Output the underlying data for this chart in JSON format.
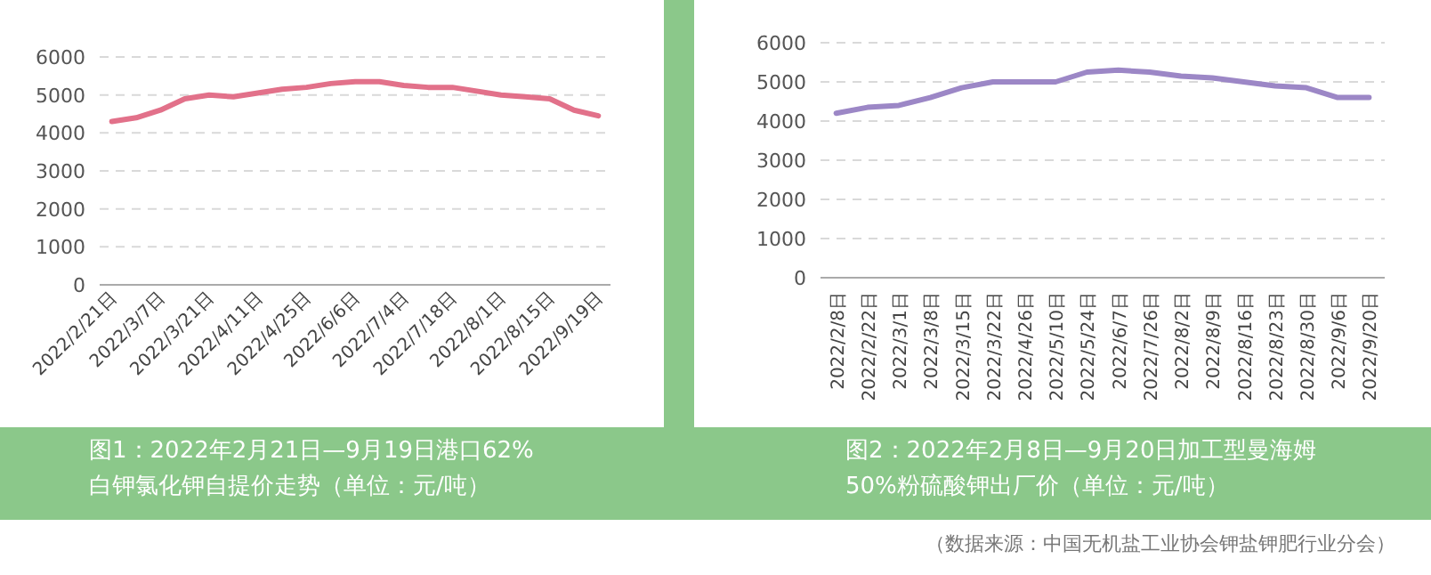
{
  "chart_data": [
    {
      "type": "line",
      "title": "图1：2022年2月21日—9月19日港口62%白钾氯化钾自提价走势（单位：元/吨）",
      "categories": [
        "2022/2/21日",
        null,
        "2022/3/7日",
        null,
        "2022/3/21日",
        null,
        "2022/4/11日",
        null,
        "2022/4/25日",
        null,
        "2022/6/6日",
        null,
        "2022/7/4日",
        null,
        "2022/7/18日",
        null,
        "2022/8/1日",
        null,
        "2022/8/15日",
        null,
        "2022/9/19日"
      ],
      "series": [
        {
          "color": "#e2718a",
          "values": [
            4300,
            4400,
            4600,
            4900,
            5000,
            4950,
            5050,
            5150,
            5200,
            5300,
            5350,
            5350,
            5250,
            5200,
            5200,
            5100,
            5000,
            4950,
            4900,
            4600,
            4450
          ]
        }
      ],
      "ylim": [
        0,
        6000
      ],
      "yticks": [
        0,
        1000,
        2000,
        3000,
        4000,
        5000,
        6000
      ],
      "grid": "y"
    },
    {
      "type": "line",
      "title": "图2：2022年2月8日—9月20日加工型曼海姆50%粉硫酸钾出厂价（单位：元/吨）",
      "categories": [
        "2022/2/8日",
        "2022/2/22日",
        "2022/3/1日",
        "2022/3/8日",
        "2022/3/15日",
        "2022/3/22日",
        "2022/4/26日",
        "2022/5/10日",
        "2022/5/24日",
        "2022/6/7日",
        "2022/7/26日",
        "2022/8/2日",
        "2022/8/9日",
        "2022/8/16日",
        "2022/8/23日",
        "2022/8/30日",
        "2022/9/6日",
        "2022/9/20日"
      ],
      "series": [
        {
          "color": "#9c87c6",
          "values": [
            4200,
            4350,
            4400,
            4600,
            4850,
            5000,
            5000,
            5000,
            5250,
            5300,
            5250,
            5150,
            5100,
            5000,
            4900,
            4850,
            4600,
            4600
          ]
        }
      ],
      "ylim": [
        0,
        6000
      ],
      "yticks": [
        0,
        1000,
        2000,
        3000,
        4000,
        5000,
        6000
      ],
      "grid": "y",
      "annotations": [
        "（数据来源：中国无机盐工业协会钾盐钾肥行业分会）"
      ]
    }
  ]
}
